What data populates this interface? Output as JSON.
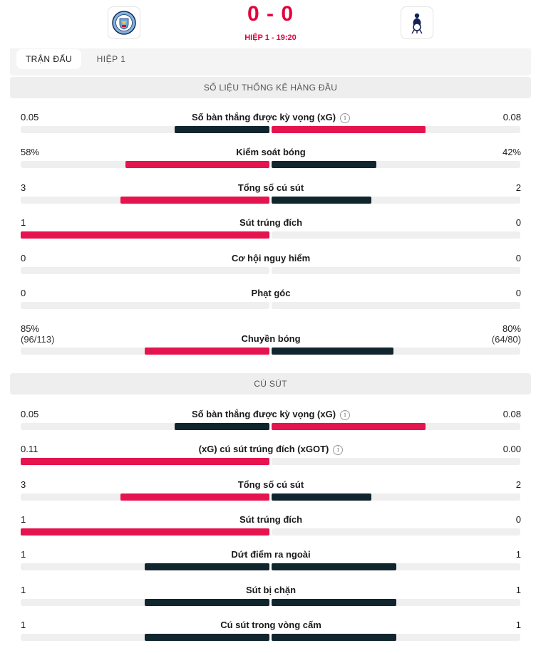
{
  "match": {
    "score": "0 - 0",
    "period": "HIỆP 1 - 19:20",
    "home_team_crest": "manchester-city-crest",
    "away_team_crest": "tottenham-crest"
  },
  "tabs": [
    {
      "label": "TRẬN ĐẤU",
      "active": true
    },
    {
      "label": "HIỆP 1",
      "active": false
    }
  ],
  "colors": {
    "winner": "#e5144e",
    "loser": "#11252e",
    "accent": "#e4003b"
  },
  "sections": [
    {
      "title": "SỐ LIỆU THỐNG KÊ HÀNG ĐẦU",
      "stats": [
        {
          "name": "Số bàn thắng được kỳ vọng (xG)",
          "info": true,
          "home": "0.05",
          "away": "0.08",
          "home_frac": 0.38,
          "away_frac": 0.62,
          "home_color": "dark",
          "away_color": "red"
        },
        {
          "name": "Kiểm soát bóng",
          "info": false,
          "home": "58%",
          "away": "42%",
          "home_frac": 0.58,
          "away_frac": 0.42,
          "home_color": "red",
          "away_color": "dark"
        },
        {
          "name": "Tổng số cú sút",
          "info": false,
          "home": "3",
          "away": "2",
          "home_frac": 0.6,
          "away_frac": 0.4,
          "home_color": "red",
          "away_color": "dark"
        },
        {
          "name": "Sút trúng đích",
          "info": false,
          "home": "1",
          "away": "0",
          "home_frac": 1.0,
          "away_frac": 0.0,
          "home_color": "red",
          "away_color": "dark"
        },
        {
          "name": "Cơ hội nguy hiểm",
          "info": false,
          "home": "0",
          "away": "0",
          "home_frac": 0.0,
          "away_frac": 0.0,
          "home_color": "dark",
          "away_color": "dark"
        },
        {
          "name": "Phạt góc",
          "info": false,
          "home": "0",
          "away": "0",
          "home_frac": 0.0,
          "away_frac": 0.0,
          "home_color": "dark",
          "away_color": "dark"
        },
        {
          "name": "Chuyền bóng",
          "info": false,
          "home": "85%",
          "away": "80%",
          "home_sub": "(96/113)",
          "away_sub": "(64/80)",
          "home_frac": 0.5,
          "away_frac": 0.49,
          "home_color": "red",
          "away_color": "dark"
        }
      ]
    },
    {
      "title": "CÚ SÚT",
      "stats": [
        {
          "name": "Số bàn thắng được kỳ vọng (xG)",
          "info": true,
          "home": "0.05",
          "away": "0.08",
          "home_frac": 0.38,
          "away_frac": 0.62,
          "home_color": "dark",
          "away_color": "red"
        },
        {
          "name": "(xG) cú sút trúng đích (xGOT)",
          "info": true,
          "home": "0.11",
          "away": "0.00",
          "home_frac": 1.0,
          "away_frac": 0.0,
          "home_color": "red",
          "away_color": "dark"
        },
        {
          "name": "Tổng số cú sút",
          "info": false,
          "home": "3",
          "away": "2",
          "home_frac": 0.6,
          "away_frac": 0.4,
          "home_color": "red",
          "away_color": "dark"
        },
        {
          "name": "Sút trúng đích",
          "info": false,
          "home": "1",
          "away": "0",
          "home_frac": 1.0,
          "away_frac": 0.0,
          "home_color": "red",
          "away_color": "dark"
        },
        {
          "name": "Dứt điểm ra ngoài",
          "info": false,
          "home": "1",
          "away": "1",
          "home_frac": 0.5,
          "away_frac": 0.5,
          "home_color": "dark",
          "away_color": "dark"
        },
        {
          "name": "Sút bị chặn",
          "info": false,
          "home": "1",
          "away": "1",
          "home_frac": 0.5,
          "away_frac": 0.5,
          "home_color": "dark",
          "away_color": "dark"
        },
        {
          "name": "Cú sút trong vòng cấm",
          "info": false,
          "home": "1",
          "away": "1",
          "home_frac": 0.5,
          "away_frac": 0.5,
          "home_color": "dark",
          "away_color": "dark"
        }
      ]
    }
  ]
}
